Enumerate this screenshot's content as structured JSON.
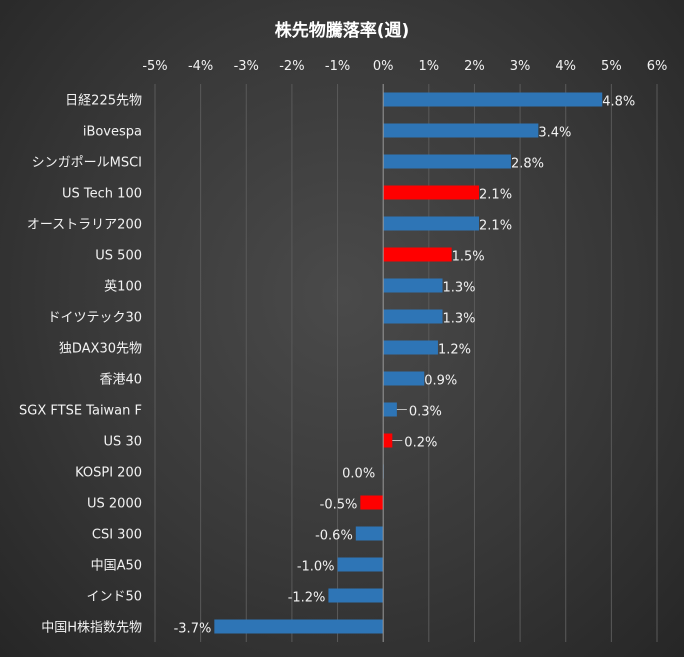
{
  "chart_data": {
    "type": "bar",
    "orientation": "horizontal",
    "title": "株先物騰落率(週)",
    "xlim": [
      -5,
      6
    ],
    "x_ticks": [
      "-5%",
      "-4%",
      "-3%",
      "-2%",
      "-1%",
      "0%",
      "1%",
      "2%",
      "3%",
      "4%",
      "5%",
      "6%"
    ],
    "grid": true,
    "categories": [
      "日経225先物",
      "iBovespa",
      "シンガポールMSCI",
      "US Tech 100",
      "オーストラリア200",
      "US 500",
      "英100",
      "ドイツテック30",
      "独DAX30先物",
      "香港40",
      "SGX FTSE Taiwan F",
      "US 30",
      "KOSPI 200",
      "US 2000",
      "CSI 300",
      "中国A50",
      "インド50",
      "中国H株指数先物"
    ],
    "values": [
      4.8,
      3.4,
      2.8,
      2.1,
      2.1,
      1.5,
      1.3,
      1.3,
      1.2,
      0.9,
      0.3,
      0.2,
      0.0,
      -0.5,
      -0.6,
      -1.0,
      -1.2,
      -3.7
    ],
    "data_labels": [
      "4.8%",
      "3.4%",
      "2.8%",
      "2.1%",
      "2.1%",
      "1.5%",
      "1.3%",
      "1.3%",
      "1.2%",
      "0.9%",
      "0.3%",
      "0.2%",
      "0.0%",
      "-0.5%",
      "-0.6%",
      "-1.0%",
      "-1.2%",
      "-3.7%"
    ],
    "highlight": [
      "US Tech 100",
      "US 500",
      "US 30",
      "US 2000"
    ],
    "colors": {
      "default": "#2e75b6",
      "highlight": "#ff0000"
    }
  }
}
